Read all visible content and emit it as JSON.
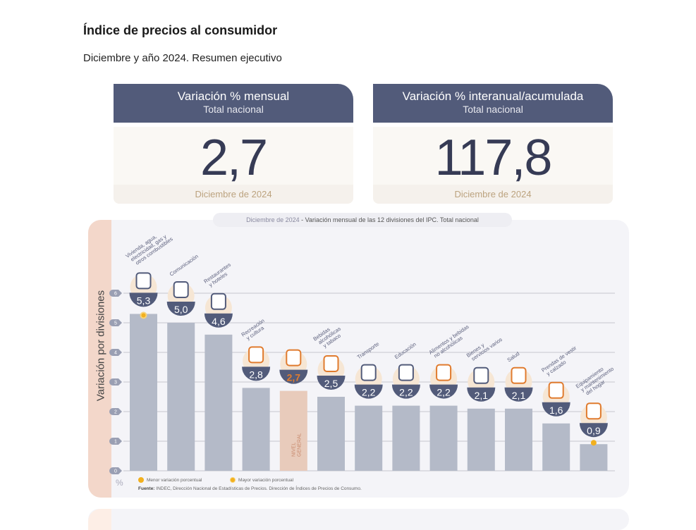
{
  "header": {
    "title": "Índice de precios al consumidor",
    "subtitle": "Diciembre y año 2024. Resumen ejecutivo"
  },
  "cards": [
    {
      "heading": "Variación % mensual",
      "subheading": "Total nacional",
      "value": "2,7",
      "period": "Diciembre de 2024"
    },
    {
      "heading": "Variación % interanual/acumulada",
      "subheading": "Total nacional",
      "value": "117,8",
      "period": "Diciembre de 2024"
    }
  ],
  "colors": {
    "header_bg": "#525b7a",
    "bar": "#b4bac8",
    "bar_general": "#e8cbbb",
    "bubble": "#525b7a",
    "accent_orange": "#e07b2e",
    "marker": "#f2b01e"
  },
  "chart_data": {
    "type": "bar",
    "title_date": "Diciembre de 2024",
    "title": "Variación mensual de las 12 divisiones del IPC. Total nacional",
    "ylabel": "Variación por divisiones",
    "yunit": "%",
    "ylim": [
      0,
      6
    ],
    "yticks": [
      "0",
      "1",
      "2",
      "3",
      "4",
      "5",
      "6"
    ],
    "grid": true,
    "categories": [
      "Vivienda, agua, electricidad, gas y otros combustibles",
      "Comunicación",
      "Restaurantes y hoteles",
      "Recreación y cultura",
      "Nivel general",
      "Bebidas alcohólicas y tabaco",
      "Transporte",
      "Educación",
      "Alimentos y bebidas no alcohólicas",
      "Bienes y servicios varios",
      "Salud",
      "Prendas de vestir y calzado",
      "Equipamiento y mantenimiento del hogar"
    ],
    "label_lines": [
      [
        "Vivienda, agua,",
        "electricidad, gas y",
        "otros combustibles"
      ],
      [
        "Comunicación"
      ],
      [
        "Restaurantes",
        "y hoteles"
      ],
      [
        "Recreación",
        "y cultura"
      ],
      [],
      [
        "Bebidas",
        "alcohólicas",
        "y tabaco"
      ],
      [
        "Transporte"
      ],
      [
        "Educación"
      ],
      [
        "Alimentos y bebidas",
        "no alcohólicas"
      ],
      [
        "Bienes y",
        "servicios varios"
      ],
      [
        "Salud"
      ],
      [
        "Prendas de vestir",
        "y calzado"
      ],
      [
        "Equipamiento",
        "y mantenimiento",
        "del hogar"
      ]
    ],
    "values": [
      5.3,
      5.0,
      4.6,
      2.8,
      2.7,
      2.5,
      2.2,
      2.2,
      2.2,
      2.1,
      2.1,
      1.6,
      0.9
    ],
    "value_labels": [
      "5,3",
      "5,0",
      "4,6",
      "2,8",
      "2,7",
      "2,5",
      "2,2",
      "2,2",
      "2,2",
      "2,1",
      "2,1",
      "1,6",
      "0,9"
    ],
    "icons": [
      "lightbulb-icon",
      "smartphone-icon",
      "cutlery-icon",
      "beach-umbrella-icon",
      "shopping-basket-icon",
      "wine-glass-icon",
      "bus-icon",
      "notebook-icon",
      "chicken-icon",
      "scissors-comb-icon",
      "first-aid-icon",
      "tshirt-shoe-icon",
      "washing-machine-icon"
    ],
    "general_index": 4,
    "general_label": [
      "NIVEL",
      "GENERAL"
    ],
    "max_marker_index": 0,
    "min_marker_index": 12,
    "legend": [
      {
        "label": "Menor variación porcentual",
        "marker": "dot"
      },
      {
        "label": "Mayor variación porcentual",
        "marker": "ring"
      }
    ],
    "source_label": "Fuente:",
    "source": "INDEC, Dirección Nacional de Estadísticas de Precios. Dirección de Índices de Precios de Consumo."
  }
}
